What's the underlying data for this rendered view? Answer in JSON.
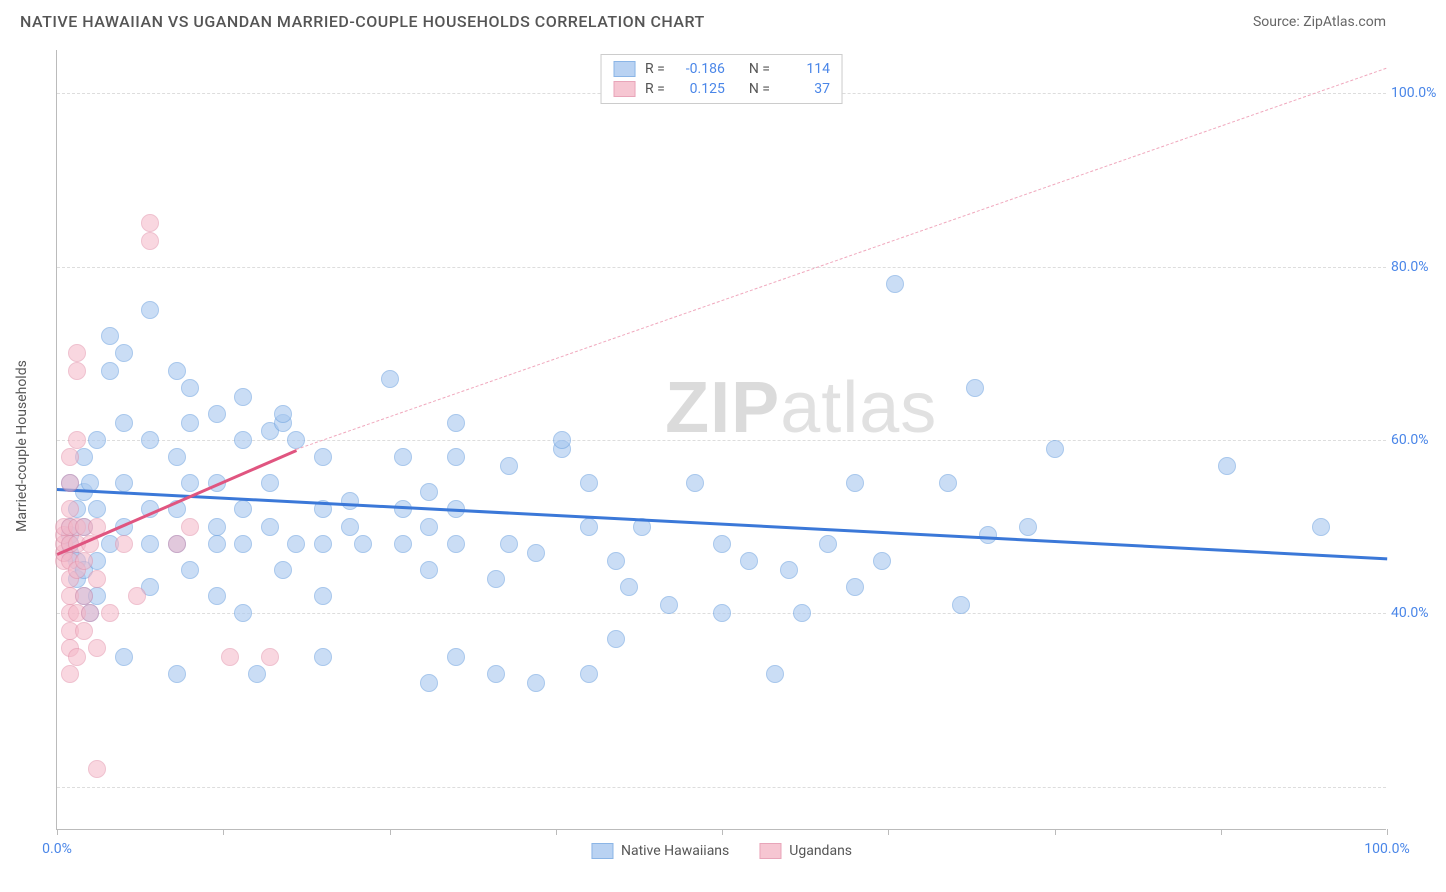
{
  "title": "NATIVE HAWAIIAN VS UGANDAN MARRIED-COUPLE HOUSEHOLDS CORRELATION CHART",
  "source_label": "Source: ZipAtlas.com",
  "watermark": "ZIPatlas",
  "chart": {
    "type": "scatter",
    "y_axis_title": "Married-couple Households",
    "xlim": [
      0,
      100
    ],
    "ylim": [
      15,
      105
    ],
    "x_ticks": [
      0,
      12.5,
      25,
      37.5,
      50,
      62.5,
      75,
      87.5,
      100
    ],
    "x_tick_labels": {
      "0": "0.0%",
      "100": "100.0%"
    },
    "y_gridlines": [
      20,
      40,
      60,
      80,
      100
    ],
    "y_tick_labels": {
      "40": "40.0%",
      "60": "60.0%",
      "80": "80.0%",
      "100": "100.0%"
    },
    "background_color": "#ffffff",
    "grid_color": "#dddddd",
    "axis_color": "#bbbbbb",
    "tick_label_color": "#4a86e8",
    "marker_radius": 9,
    "marker_border_width": 1.5,
    "series": [
      {
        "name": "Native Hawaiians",
        "fill_color": "#a8c8f0",
        "fill_opacity": 0.6,
        "stroke_color": "#6fa3e0",
        "r_value": "-0.186",
        "n_value": "114",
        "trend": {
          "x1": 0,
          "y1": 54.5,
          "x2": 100,
          "y2": 46.5,
          "color": "#3b78d8",
          "width": 2.5
        },
        "points": [
          [
            1,
            47
          ],
          [
            1,
            48
          ],
          [
            1,
            49
          ],
          [
            1,
            50
          ],
          [
            1,
            55
          ],
          [
            1.5,
            44
          ],
          [
            1.5,
            46
          ],
          [
            1.5,
            52
          ],
          [
            2,
            42
          ],
          [
            2,
            45
          ],
          [
            2,
            50
          ],
          [
            2,
            54
          ],
          [
            2,
            58
          ],
          [
            2.5,
            40
          ],
          [
            2.5,
            55
          ],
          [
            3,
            46
          ],
          [
            3,
            52
          ],
          [
            3,
            60
          ],
          [
            3,
            42
          ],
          [
            4,
            48
          ],
          [
            4,
            68
          ],
          [
            4,
            72
          ],
          [
            5,
            35
          ],
          [
            5,
            50
          ],
          [
            5,
            55
          ],
          [
            5,
            62
          ],
          [
            5,
            70
          ],
          [
            7,
            43
          ],
          [
            7,
            48
          ],
          [
            7,
            52
          ],
          [
            7,
            60
          ],
          [
            7,
            75
          ],
          [
            9,
            33
          ],
          [
            9,
            48
          ],
          [
            9,
            52
          ],
          [
            9,
            58
          ],
          [
            9,
            68
          ],
          [
            10,
            45
          ],
          [
            10,
            55
          ],
          [
            10,
            62
          ],
          [
            10,
            66
          ],
          [
            12,
            42
          ],
          [
            12,
            48
          ],
          [
            12,
            50
          ],
          [
            12,
            55
          ],
          [
            12,
            63
          ],
          [
            14,
            40
          ],
          [
            14,
            48
          ],
          [
            14,
            52
          ],
          [
            14,
            60
          ],
          [
            14,
            65
          ],
          [
            15,
            33
          ],
          [
            16,
            50
          ],
          [
            16,
            55
          ],
          [
            16,
            61
          ],
          [
            17,
            45
          ],
          [
            17,
            62
          ],
          [
            17,
            63
          ],
          [
            18,
            48
          ],
          [
            18,
            60
          ],
          [
            20,
            35
          ],
          [
            20,
            42
          ],
          [
            20,
            48
          ],
          [
            20,
            52
          ],
          [
            20,
            58
          ],
          [
            22,
            50
          ],
          [
            22,
            53
          ],
          [
            23,
            48
          ],
          [
            25,
            67
          ],
          [
            26,
            48
          ],
          [
            26,
            52
          ],
          [
            26,
            58
          ],
          [
            28,
            32
          ],
          [
            28,
            45
          ],
          [
            28,
            50
          ],
          [
            28,
            54
          ],
          [
            30,
            35
          ],
          [
            30,
            48
          ],
          [
            30,
            52
          ],
          [
            30,
            58
          ],
          [
            30,
            62
          ],
          [
            33,
            33
          ],
          [
            33,
            44
          ],
          [
            34,
            48
          ],
          [
            34,
            57
          ],
          [
            36,
            32
          ],
          [
            36,
            47
          ],
          [
            38,
            59
          ],
          [
            38,
            60
          ],
          [
            40,
            33
          ],
          [
            40,
            50
          ],
          [
            40,
            55
          ],
          [
            42,
            37
          ],
          [
            42,
            46
          ],
          [
            43,
            43
          ],
          [
            44,
            50
          ],
          [
            46,
            41
          ],
          [
            48,
            55
          ],
          [
            50,
            40
          ],
          [
            50,
            48
          ],
          [
            52,
            46
          ],
          [
            54,
            33
          ],
          [
            55,
            45
          ],
          [
            56,
            40
          ],
          [
            58,
            48
          ],
          [
            60,
            43
          ],
          [
            60,
            55
          ],
          [
            62,
            46
          ],
          [
            63,
            78
          ],
          [
            67,
            55
          ],
          [
            68,
            41
          ],
          [
            69,
            66
          ],
          [
            70,
            49
          ],
          [
            73,
            50
          ],
          [
            75,
            59
          ],
          [
            88,
            57
          ],
          [
            95,
            50
          ]
        ]
      },
      {
        "name": "Ugandans",
        "fill_color": "#f5b8c8",
        "fill_opacity": 0.55,
        "stroke_color": "#e38fa8",
        "r_value": "0.125",
        "n_value": "37",
        "trend_solid": {
          "x1": 0,
          "y1": 47,
          "x2": 18,
          "y2": 59,
          "color": "#e05580",
          "width": 2.5
        },
        "trend_dash": {
          "x1": 18,
          "y1": 59,
          "x2": 100,
          "y2": 103,
          "color": "#f0a8bd",
          "width": 1.5
        },
        "points": [
          [
            0.5,
            46
          ],
          [
            0.5,
            47
          ],
          [
            0.5,
            48
          ],
          [
            0.5,
            49
          ],
          [
            0.5,
            50
          ],
          [
            1,
            33
          ],
          [
            1,
            36
          ],
          [
            1,
            38
          ],
          [
            1,
            40
          ],
          [
            1,
            42
          ],
          [
            1,
            44
          ],
          [
            1,
            46
          ],
          [
            1,
            48
          ],
          [
            1,
            50
          ],
          [
            1,
            52
          ],
          [
            1,
            55
          ],
          [
            1,
            58
          ],
          [
            1.5,
            35
          ],
          [
            1.5,
            40
          ],
          [
            1.5,
            45
          ],
          [
            1.5,
            48
          ],
          [
            1.5,
            50
          ],
          [
            1.5,
            60
          ],
          [
            1.5,
            68
          ],
          [
            1.5,
            70
          ],
          [
            2,
            38
          ],
          [
            2,
            42
          ],
          [
            2,
            46
          ],
          [
            2,
            50
          ],
          [
            2.5,
            40
          ],
          [
            2.5,
            48
          ],
          [
            3,
            22
          ],
          [
            3,
            36
          ],
          [
            3,
            44
          ],
          [
            3,
            50
          ],
          [
            4,
            40
          ],
          [
            5,
            48
          ],
          [
            6,
            42
          ],
          [
            7,
            83
          ],
          [
            7,
            85
          ],
          [
            9,
            48
          ],
          [
            10,
            50
          ],
          [
            13,
            35
          ],
          [
            16,
            35
          ]
        ]
      }
    ]
  },
  "legend_top": {
    "r_label": "R =",
    "n_label": "N ="
  },
  "legend_bottom": [
    {
      "label": "Native Hawaiians",
      "fill": "#a8c8f0",
      "stroke": "#6fa3e0"
    },
    {
      "label": "Ugandans",
      "fill": "#f5b8c8",
      "stroke": "#e38fa8"
    }
  ]
}
